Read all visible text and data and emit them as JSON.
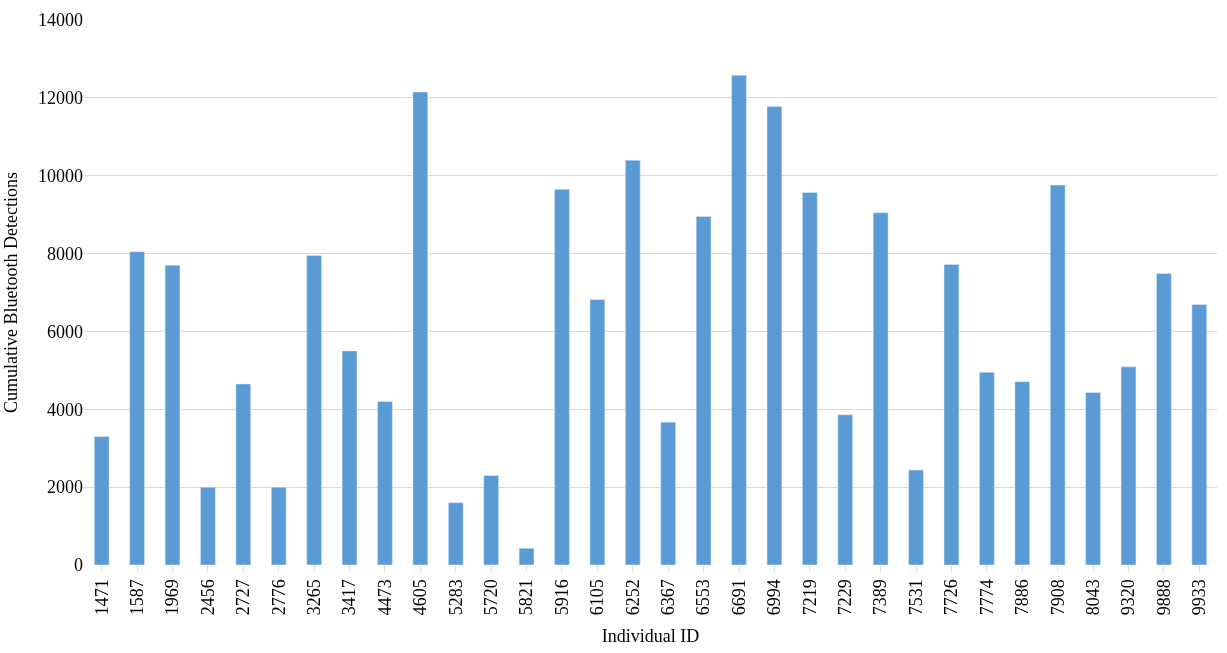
{
  "chart_data": {
    "type": "bar",
    "xlabel": "Individual ID",
    "ylabel": "Cumulative Bluetooth Detections",
    "categories": [
      "1471",
      "1587",
      "1969",
      "2456",
      "2727",
      "2776",
      "3265",
      "3417",
      "4473",
      "4605",
      "5283",
      "5720",
      "5821",
      "5916",
      "6105",
      "6252",
      "6367",
      "6553",
      "6691",
      "6994",
      "7219",
      "7229",
      "7389",
      "7531",
      "7726",
      "7774",
      "7886",
      "7908",
      "8043",
      "9320",
      "9888",
      "9933"
    ],
    "values": [
      3300,
      8050,
      7700,
      2000,
      4650,
      2000,
      7950,
      5500,
      4200,
      12150,
      1600,
      2300,
      430,
      9650,
      6820,
      10400,
      3670,
      8950,
      12580,
      11780,
      9570,
      3860,
      9050,
      2440,
      7720,
      4950,
      4710,
      9760,
      4430,
      5090,
      7490,
      6690
    ],
    "color": "#5b9bd5",
    "ylim": [
      0,
      14000
    ],
    "yticks": [
      0,
      2000,
      4000,
      6000,
      8000,
      10000,
      12000,
      14000
    ],
    "grid": "y",
    "legend": false
  }
}
